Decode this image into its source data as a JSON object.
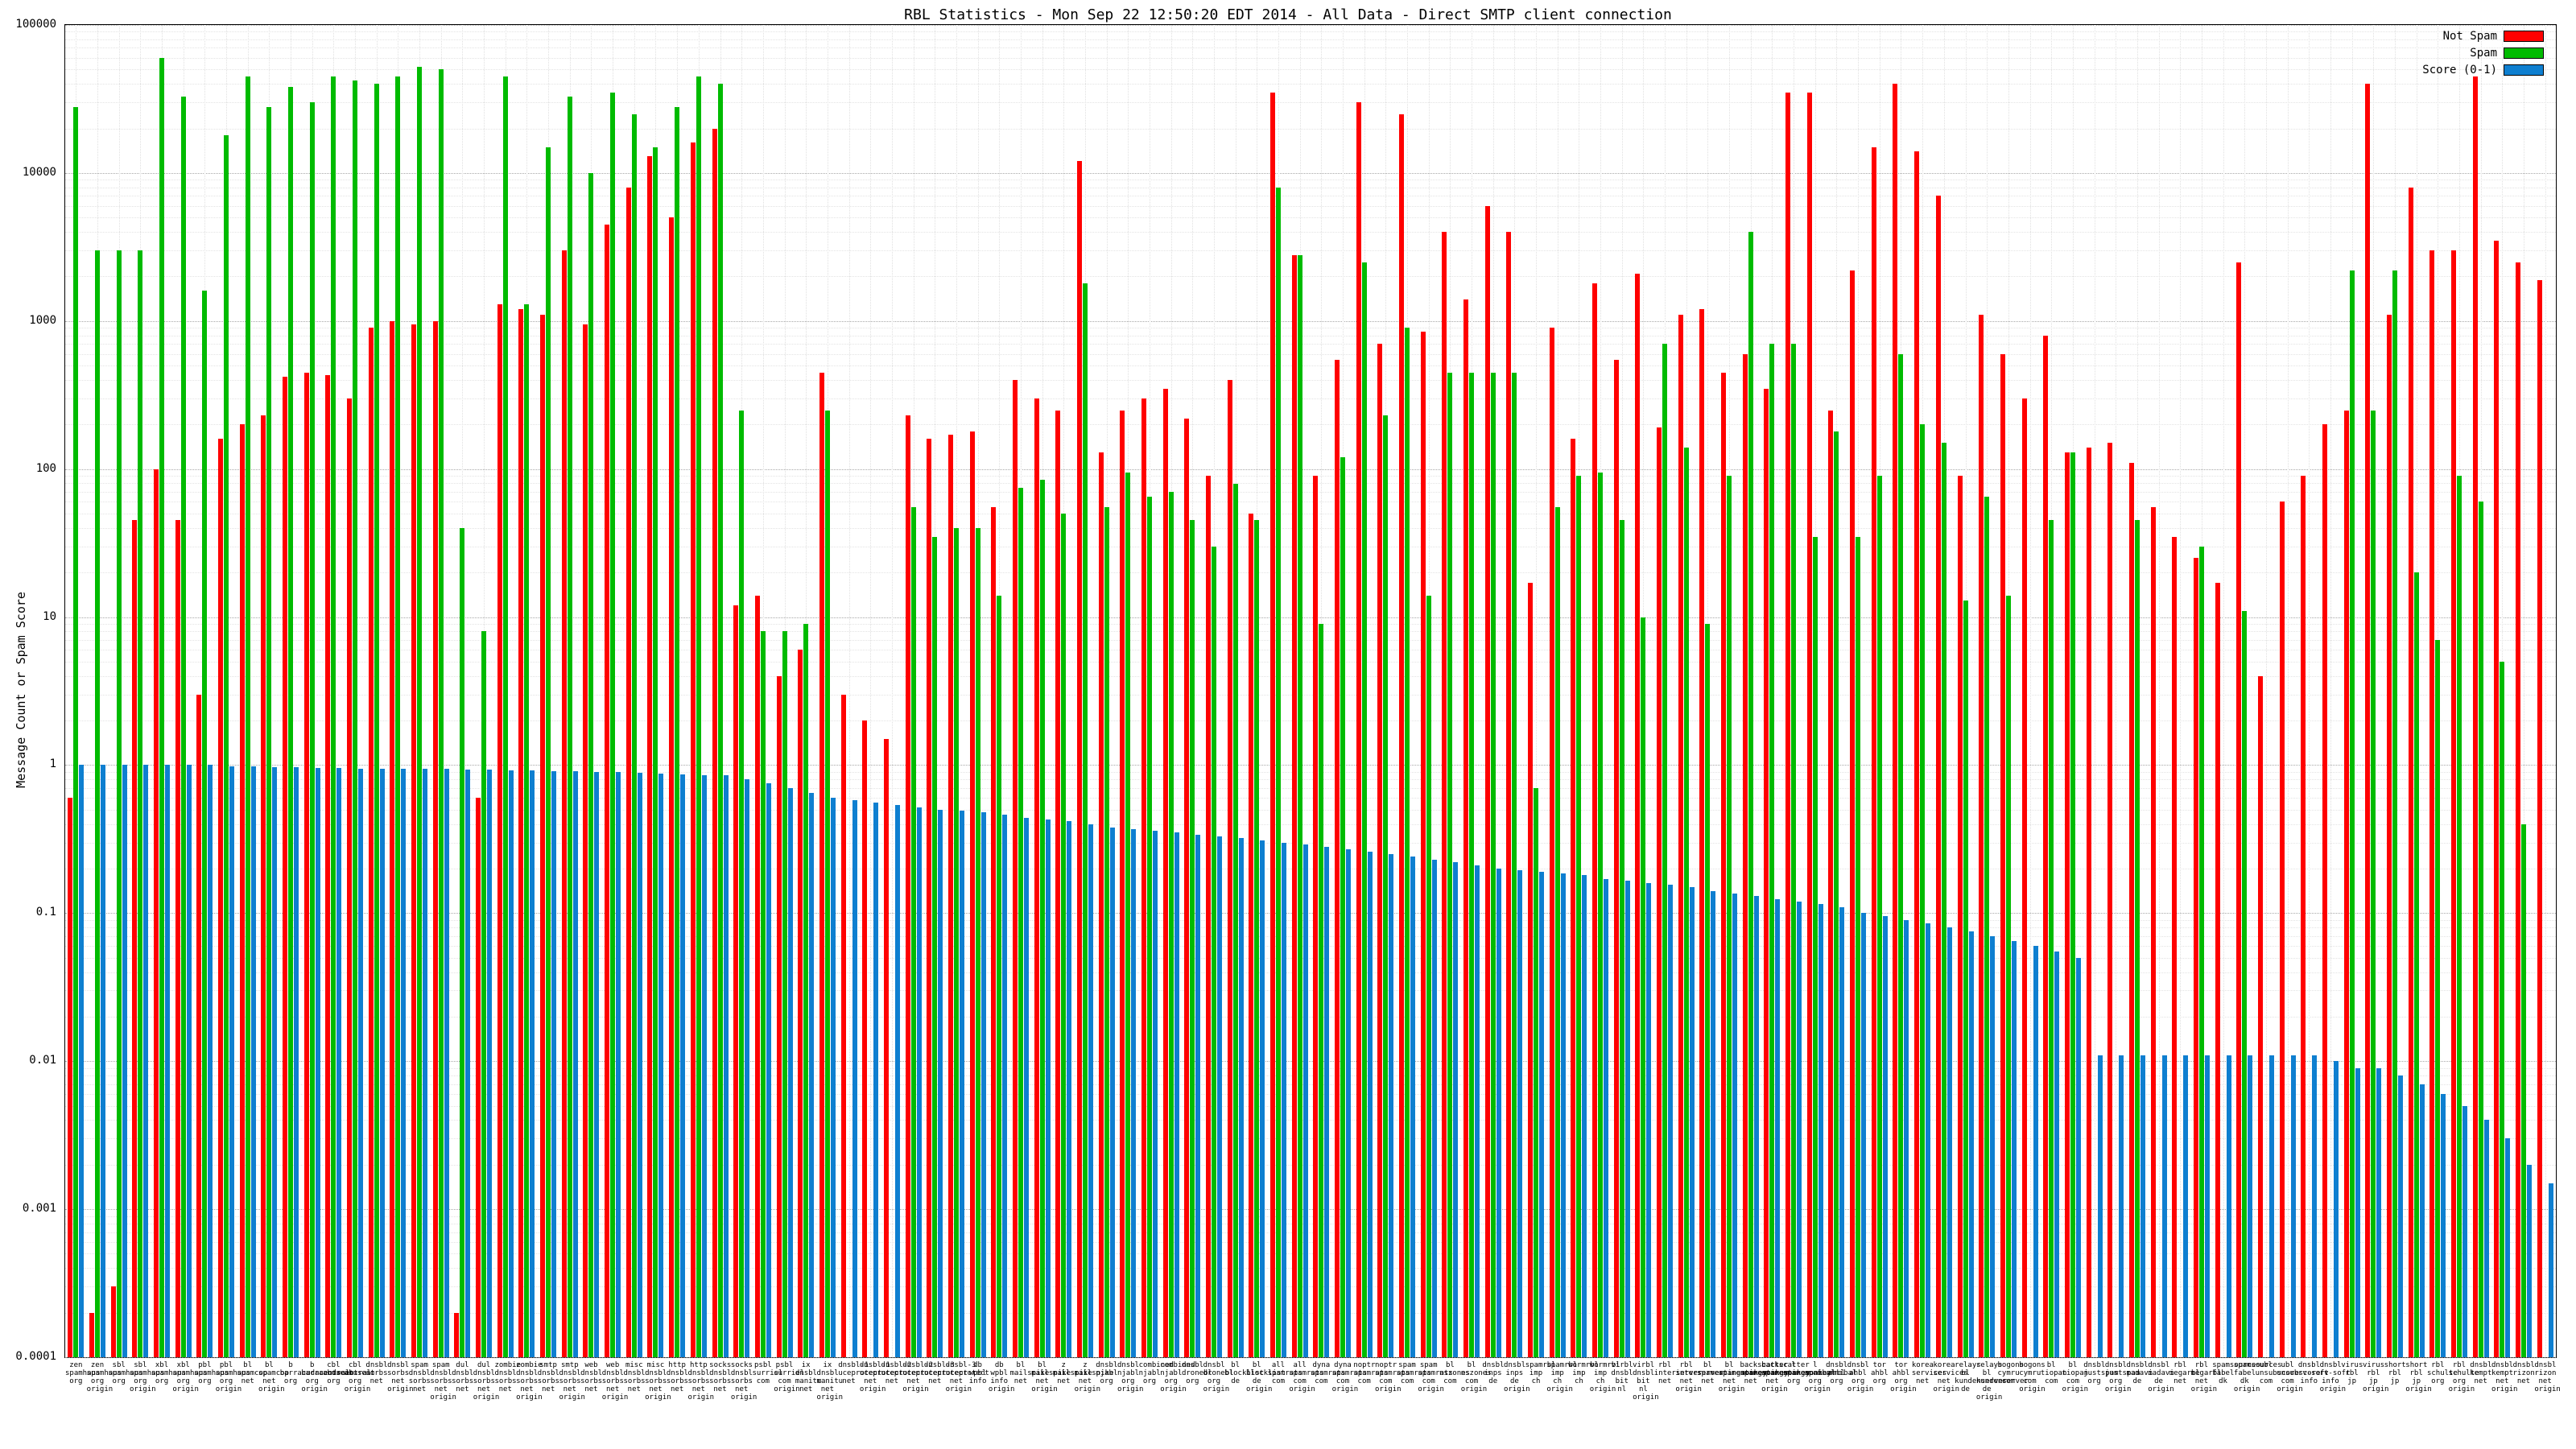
{
  "title": "RBL Statistics - Mon Sep 22 12:50:20 EDT 2014 - All Data - Direct SMTP client connection",
  "legend": [
    {
      "label": "Not Spam",
      "color": "#ff0000",
      "icon": "legend-swatch-not-spam"
    },
    {
      "label": "Spam",
      "color": "#00bb00",
      "icon": "legend-swatch-spam"
    },
    {
      "label": "Score (0-1)",
      "color": "#0e7fd0",
      "icon": "legend-swatch-score"
    }
  ],
  "y_axis": {
    "label": "Message Count or Spam Score"
  },
  "chart_data": {
    "type": "bar",
    "title": "RBL Statistics - Mon Sep 22 12:50:20 EDT 2014 - All Data - Direct SMTP client connection",
    "ylabel": "Message Count or Spam Score",
    "ylim": [
      0.0001,
      100000
    ],
    "y_scale": "log",
    "grid": true,
    "legend_position": "top-right",
    "y_ticks": [
      "100000",
      "10000",
      "1000",
      "100",
      "10",
      "1",
      "0.1",
      "0.01",
      "0.001",
      "0.0001"
    ],
    "labels": [
      "zen.spamhaus.org",
      "zen.spamhaus.org origin",
      "sbl.spamhaus.org",
      "sbl.spamhaus.org origin",
      "xbl.spamhaus.org",
      "xbl.spamhaus.org origin",
      "pbl.spamhaus.org",
      "pbl.spamhaus.org origin",
      "bl.spamcop.net",
      "bl.spamcop.net origin",
      "b.barracudacentral.org",
      "b.barracudacentral.org origin",
      "cbl.abuseat.org",
      "cbl.abuseat.org origin",
      "dnsbl.sorbs.net",
      "dnsbl.sorbs.net origin",
      "spam.dnsbl.sorbs.net",
      "spam.dnsbl.sorbs.net origin",
      "dul.dnsbl.sorbs.net",
      "dul.dnsbl.sorbs.net origin",
      "zombie.dnsbl.sorbs.net",
      "zombie.dnsbl.sorbs.net origin",
      "smtp.dnsbl.sorbs.net",
      "smtp.dnsbl.sorbs.net origin",
      "web.dnsbl.sorbs.net",
      "web.dnsbl.sorbs.net origin",
      "misc.dnsbl.sorbs.net",
      "misc.dnsbl.sorbs.net origin",
      "http.dnsbl.sorbs.net",
      "http.dnsbl.sorbs.net origin",
      "socks.dnsbl.sorbs.net",
      "socks.dnsbl.sorbs.net origin",
      "psbl.surriel.com",
      "psbl.surriel.com origin",
      "ix.dnsbl.manitu.net",
      "ix.dnsbl.manitu.net origin",
      "dnsbl-1.uceprotect.net",
      "dnsbl-1.uceprotect.net origin",
      "dnsbl-2.uceprotect.net",
      "dnsbl-2.uceprotect.net origin",
      "dnsbl-3.uceprotect.net",
      "dnsbl-3.uceprotect.net origin",
      "db.wpbl.info",
      "db.wpbl.info origin",
      "bl.mailspike.net",
      "bl.mailspike.net origin",
      "z.mailspike.net",
      "z.mailspike.net origin",
      "dnsbl.njabl.org",
      "dnsbl.njabl.org origin",
      "combined.njabl.org",
      "combined.njabl.org origin",
      "dnsbl.dronebl.org",
      "dnsbl.dronebl.org origin",
      "bl.blocklist.de",
      "bl.blocklist.de origin",
      "all.spamrats.com",
      "all.spamrats.com origin",
      "dyna.spamrats.com",
      "dyna.spamrats.com origin",
      "noptr.spamrats.com",
      "noptr.spamrats.com origin",
      "spam.spamrats.com",
      "spam.spamrats.com origin",
      "bl.nszones.com",
      "bl.nszones.com origin",
      "dnsbl.inps.de",
      "dnsbl.inps.de origin",
      "spamrbl.imp.ch",
      "spamrbl.imp.ch origin",
      "wormrbl.imp.ch",
      "wormrbl.imp.ch origin",
      "virbl.dnsbl.bit.nl",
      "virbl.dnsbl.bit.nl origin",
      "rbl.interserver.net",
      "rbl.interserver.net origin",
      "bl.spameatingmonkey.net",
      "bl.spameatingmonkey.net origin",
      "backscatter.spameatingmonkey.net",
      "backscatter.spameatingmonkey.net origin",
      "l.spamcannibal.org",
      "l.spamcannibal.org origin",
      "dnsbl.ahbl.org",
      "dnsbl.ahbl.org origin",
      "tor.ahbl.org",
      "tor.ahbl.org origin",
      "korea.services.net",
      "korea.services.net origin",
      "relays.bl.kundenserver.de",
      "relays.bl.kundenserver.de origin",
      "bogons.cymru.com",
      "bogons.cymru.com origin",
      "bl.tiopan.com",
      "bl.tiopan.com origin",
      "dnsbl.justspam.org",
      "dnsbl.justspam.org origin",
      "dnsbl.madavi.de",
      "dnsbl.madavi.de origin",
      "rbl.megarbl.net",
      "rbl.megarbl.net origin",
      "spamsources.fabel.dk",
      "spamsources.fabel.dk origin",
      "ubl.unsubscore.com",
      "ubl.unsubscore.com origin",
      "dnsbl.rv-soft.info",
      "dnsbl.rv-soft.info origin",
      "virus.rbl.jp",
      "virus.rbl.jp origin",
      "short.rbl.jp",
      "short.rbl.jp origin",
      "rbl.schulte.org",
      "rbl.schulte.org origin",
      "dnsbl.kempt.net",
      "dnsbl.kempt.net origin",
      "dnsbl.rizon.net",
      "dnsbl.rizon.net origin"
    ],
    "series": [
      {
        "key": "not-spam",
        "name": "Not Spam",
        "color": "#ff0000",
        "values": [
          0.6,
          0.0002,
          0.0003,
          45,
          100,
          45,
          3,
          160,
          200,
          230,
          420,
          450,
          430,
          300,
          900,
          1000,
          950,
          1000,
          0.0002,
          0.6,
          1300,
          1200,
          1100,
          3000,
          950,
          4500,
          8000,
          13000,
          5000,
          16000,
          20000,
          12,
          14,
          4,
          6,
          450,
          3,
          2,
          1.5,
          230,
          160,
          170,
          180,
          55,
          400,
          300,
          250,
          12000,
          130,
          250,
          300,
          350,
          220,
          90,
          400,
          50,
          35000,
          2800,
          90,
          550,
          30000,
          700,
          25000,
          850,
          4000,
          1400,
          6000,
          4000,
          17,
          900,
          160,
          1800,
          550,
          2100,
          190,
          1100,
          1200,
          450,
          600,
          350,
          35000,
          35000,
          250,
          2200,
          15000,
          40000,
          14000,
          7000,
          90,
          1100,
          600,
          300,
          800,
          130,
          140,
          150,
          110,
          55,
          35,
          25,
          17,
          2500,
          4,
          60,
          90,
          200,
          250,
          40000,
          1100,
          8000,
          3000,
          3000,
          45000,
          3500,
          2500,
          1900
        ]
      },
      {
        "key": "spam",
        "name": "Spam",
        "color": "#00bb00",
        "values": [
          28000,
          3000,
          3000,
          3000,
          60000,
          33000,
          1600,
          18000,
          45000,
          28000,
          38000,
          30000,
          45000,
          42000,
          40000,
          45000,
          52000,
          50000,
          40,
          8,
          45000,
          1300,
          15000,
          33000,
          10000,
          35000,
          25000,
          15000,
          28000,
          45000,
          40000,
          250,
          8,
          8,
          9,
          250,
          null,
          null,
          null,
          55,
          35,
          40,
          40,
          14,
          75,
          85,
          50,
          1800,
          55,
          95,
          65,
          70,
          45,
          30,
          80,
          45,
          8000,
          2800,
          9,
          120,
          2500,
          230,
          900,
          14,
          450,
          450,
          450,
          450,
          0.7,
          55,
          90,
          95,
          45,
          10,
          700,
          140,
          9,
          90,
          4000,
          700,
          700,
          35,
          180,
          35,
          90,
          600,
          200,
          150,
          13,
          65,
          14,
          null,
          45,
          130,
          null,
          null,
          45,
          null,
          null,
          30,
          null,
          11,
          null,
          null,
          null,
          null,
          2200,
          250,
          2200,
          20,
          7,
          90,
          60,
          5,
          0.4,
          null
        ]
      },
      {
        "key": "score",
        "name": "Score (0-1)",
        "color": "#0e7fd0",
        "values": [
          1.0,
          1.0,
          1.0,
          1.0,
          1.0,
          1.0,
          1.0,
          0.98,
          0.98,
          0.97,
          0.97,
          0.96,
          0.96,
          0.95,
          0.95,
          0.95,
          0.94,
          0.94,
          0.93,
          0.93,
          0.92,
          0.92,
          0.91,
          0.91,
          0.9,
          0.9,
          0.89,
          0.88,
          0.87,
          0.86,
          0.85,
          0.8,
          0.75,
          0.7,
          0.65,
          0.6,
          0.58,
          0.56,
          0.54,
          0.52,
          0.5,
          0.49,
          0.48,
          0.46,
          0.44,
          0.43,
          0.42,
          0.4,
          0.38,
          0.37,
          0.36,
          0.35,
          0.34,
          0.33,
          0.32,
          0.31,
          0.3,
          0.29,
          0.28,
          0.27,
          0.26,
          0.25,
          0.24,
          0.23,
          0.22,
          0.21,
          0.2,
          0.195,
          0.19,
          0.185,
          0.18,
          0.17,
          0.165,
          0.16,
          0.155,
          0.15,
          0.14,
          0.135,
          0.13,
          0.125,
          0.12,
          0.115,
          0.11,
          0.1,
          0.095,
          0.09,
          0.085,
          0.08,
          0.075,
          0.07,
          0.065,
          0.06,
          0.055,
          0.05,
          0.011,
          0.011,
          0.011,
          0.011,
          0.011,
          0.011,
          0.011,
          0.011,
          0.011,
          0.011,
          0.011,
          0.01,
          0.009,
          0.009,
          0.008,
          0.007,
          0.006,
          0.005,
          0.004,
          0.003,
          0.002,
          0.0015
        ]
      }
    ]
  }
}
